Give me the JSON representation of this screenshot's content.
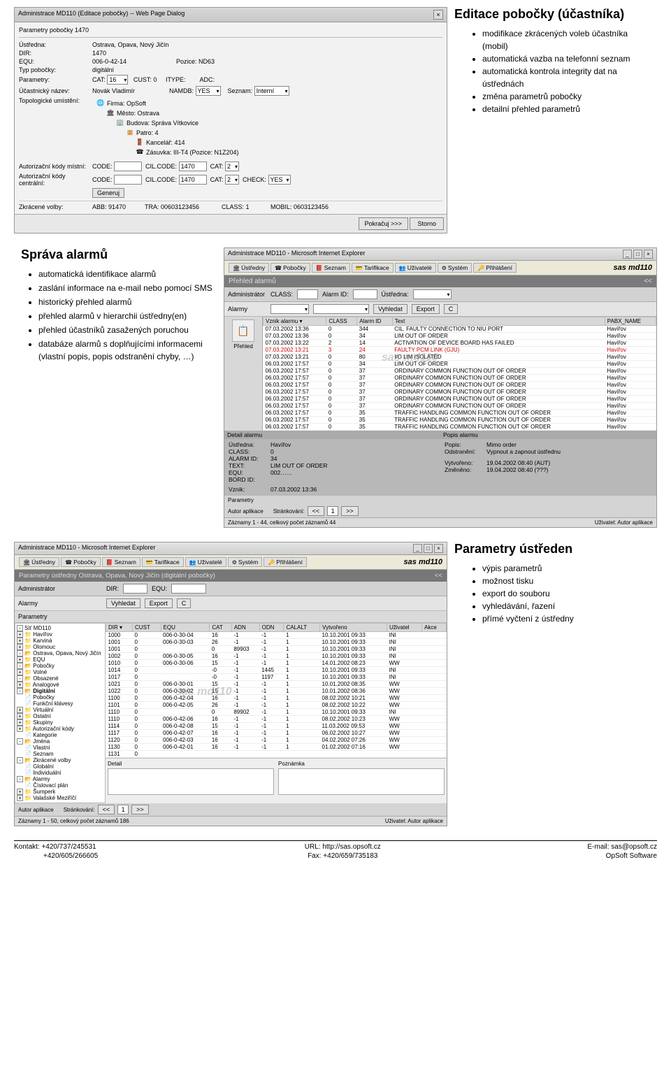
{
  "section1": {
    "heading": "Editace pobočky (účastníka)",
    "bullets": [
      "modifikace zkrácených voleb účastníka (mobil)",
      "automatická vazba na telefonní seznam",
      "automatická kontrola integrity dat na ústřednách",
      "změna parametrů pobočky",
      "detailní přehled parametrů"
    ]
  },
  "section2": {
    "heading": "Správa alarmů",
    "bullets": [
      "automatická identifikace alarmů",
      "zaslání informace na e-mail nebo pomocí SMS",
      "historický přehled alarmů",
      "přehled alarmů v hierarchii ústředny(en)",
      "přehled účastníků zasažených poruchou",
      "databáze alarmů s doplňujícími informacemi (vlastní popis, popis odstranění chyby, …)"
    ]
  },
  "section3": {
    "heading": "Parametry ústředen",
    "bullets": [
      "výpis parametrů",
      "možnost tisku",
      "export do souboru",
      "vyhledávání, řazení",
      "přímé vyčtení z ústředny"
    ]
  },
  "dialog1": {
    "title": "Administrace MD110 (Editace pobočky) -- Web Page Dialog",
    "subtitle": "Parametry pobočky 1470",
    "fields": {
      "ustredna_lbl": "Ústředna:",
      "ustredna_val": "Ostrava, Opava, Nový Jičín",
      "dir_lbl": "DIR:",
      "dir_val": "1470",
      "equ_lbl": "EQU:",
      "equ_val": "006-0-42-14",
      "pozice_lbl": "Pozice:",
      "pozice_val": "ND63",
      "typ_lbl": "Typ pobočky:",
      "typ_val": "digitální",
      "param_lbl": "Parametry:",
      "cat_lbl": "CAT:",
      "cat_val": "16",
      "cust_lbl": "CUST:",
      "cust_val": "0",
      "itype_lbl": "ITYPE:",
      "adc_lbl": "ADC:",
      "unazev_lbl": "Účastnický název:",
      "novak": "Novák Vladimír",
      "namdb_lbl": "NAMDB:",
      "namdb_val": "YES",
      "seznam_lbl": "Seznam:",
      "seznam_val": "Interní",
      "topo_lbl": "Topologické umístění:"
    },
    "tree": [
      {
        "icon": "🌐",
        "label": "Firma: OpSoft",
        "indent": 0,
        "color": "#2a6dd6"
      },
      {
        "icon": "🏛",
        "label": "Město: Ostrava",
        "indent": 1
      },
      {
        "icon": "🏢",
        "label": "Budova: Správa Vítkovice",
        "indent": 2
      },
      {
        "icon": "▦",
        "label": "Patro: 4",
        "indent": 3,
        "color": "#cc7700"
      },
      {
        "icon": "🚪",
        "label": "Kancelář: 414",
        "indent": 4
      },
      {
        "icon": "☎",
        "label": "Zásuvka: III-T4   (Pozice: N1Z204)",
        "indent": 4
      }
    ],
    "auth_mistni_lbl": "Autorizační kódy místní:",
    "auth_centr_lbl": "Autorizační kódy centrální:",
    "code_lbl": "CODE:",
    "cilcode_lbl": "CIL.CODE:",
    "cilcode_val": "1470",
    "kcat_lbl": "CAT:",
    "kcat_val": "2",
    "check_lbl": "CHECK:",
    "check_val": "YES",
    "generuj": "Generuj",
    "zkrac_lbl": "Zkrácené volby:",
    "abb": "ABB: 91470",
    "tra": "TRA: 00603123456",
    "class": "CLASS: 1",
    "mobil": "MOBIL: 0603123456",
    "pokracuj": "Pokračuj >>>",
    "storno": "Storno"
  },
  "browser_title": "Administrace MD110 - Microsoft Internet Explorer",
  "toolbar_tabs": [
    {
      "ico": "🏛",
      "label": "Ústředny"
    },
    {
      "ico": "☎",
      "label": "Pobočky"
    },
    {
      "ico": "📕",
      "label": "Seznam"
    },
    {
      "ico": "💳",
      "label": "Tarifikace"
    },
    {
      "ico": "👥",
      "label": "Uživatelé"
    },
    {
      "ico": "⚙",
      "label": "Systém"
    },
    {
      "ico": "🔑",
      "label": "Přihlášení"
    }
  ],
  "logo": "sas md110",
  "alarms": {
    "panel_title": "Přehled alarmů",
    "collapse": "<<",
    "admin_lbl": "Administrátor",
    "alarmy_lbl": "Alarmy",
    "class_lbl": "CLASS:",
    "alarmid_lbl": "Alarm ID:",
    "ustredna_lbl": "Ústředna:",
    "vyhledat": "Vyhledat",
    "export": "Export",
    "c_btn": "C",
    "side_label": "Přehled",
    "columns": [
      "Vznik alarmu ▾",
      "CLASS",
      "Alarm ID",
      "Text",
      "PABX_NAME"
    ],
    "rows": [
      [
        "07.03.2002 13:36",
        "0",
        "344",
        "CIL. FAULTY CONNECTION TO NIU PORT",
        "Havířov"
      ],
      [
        "07.03.2002 13:36",
        "0",
        "34",
        "LIM OUT OF ORDER",
        "Havířov"
      ],
      [
        "07.03.2002 13:22",
        "2",
        "14",
        "ACTIVATION OF DEVICE BOARD HAS FAILED",
        "Havířov"
      ],
      [
        "07.03.2002 13:21",
        "3",
        "24",
        "FAULTY PCM LINK (GJU)",
        "Havířov"
      ],
      [
        "07.03.2002 13:21",
        "0",
        "80",
        "I/O LIM ISOLATED",
        "Havířov"
      ],
      [
        "06.03.2002 17:57",
        "0",
        "34",
        "LIM OUT OF ORDER",
        "Havířov"
      ],
      [
        "06.03.2002 17:57",
        "0",
        "37",
        "ORDINARY COMMON FUNCTION OUT OF ORDER",
        "Havířov"
      ],
      [
        "06.03.2002 17:57",
        "0",
        "37",
        "ORDINARY COMMON FUNCTION OUT OF ORDER",
        "Havířov"
      ],
      [
        "06.03.2002 17:57",
        "0",
        "37",
        "ORDINARY COMMON FUNCTION OUT OF ORDER",
        "Havířov"
      ],
      [
        "06.03.2002 17:57",
        "0",
        "37",
        "ORDINARY COMMON FUNCTION OUT OF ORDER",
        "Havířov"
      ],
      [
        "06.03.2002 17:57",
        "0",
        "37",
        "ORDINARY COMMON FUNCTION OUT OF ORDER",
        "Havířov"
      ],
      [
        "06.03.2002 17:57",
        "0",
        "37",
        "ORDINARY COMMON FUNCTION OUT OF ORDER",
        "Havířov"
      ],
      [
        "06.03.2002 17:57",
        "0",
        "35",
        "TRAFFIC HANDLING COMMON FUNCTION OUT OF ORDER",
        "Havířov"
      ],
      [
        "06.03.2002 17:57",
        "0",
        "35",
        "TRAFFIC HANDLING COMMON FUNCTION OUT OF ORDER",
        "Havířov"
      ],
      [
        "06.03.2002 17:57",
        "0",
        "35",
        "TRAFFIC HANDLING COMMON FUNCTION OUT OF ORDER",
        "Havířov"
      ]
    ],
    "red_row": 3,
    "detail_title": "Detail alarmu",
    "popis_title": "Popis alarmu",
    "d_ustredna_lbl": "Ústředna:",
    "d_ustredna": "Havířov",
    "d_class_lbl": "CLASS:",
    "d_class": "0",
    "d_alarmid_lbl": "ALARM ID:",
    "d_alarmid": "34",
    "d_text_lbl": "TEXT:",
    "d_text": "LIM OUT OF ORDER",
    "d_equ_lbl": "EQU:",
    "d_equ": "002……",
    "d_bord_lbl": "BORD ID:",
    "d_vznik_lbl": "Vznik:",
    "d_vznik": "07.03.2002 13:36",
    "p_popis_lbl": "Popis:",
    "p_popis": "Mimo order",
    "p_odstr_lbl": "Odstranění:",
    "p_odstr": "Vypnout a zapnout ústřednu",
    "p_vytv_lbl": "Vytvořeno:",
    "p_vytv": "19.04.2002 08:40   (AUT)",
    "p_zmen_lbl": "Změněno:",
    "p_zmen": "19.04.2002 08:40   (???)",
    "parametry": "Parametry",
    "autor": "Autor aplikace",
    "strankov": "Stránkování:",
    "pg": "1",
    "prev": "<<",
    "next": ">>",
    "zaznamy": "Záznamy 1 - 44, celkový počet záznamů 44",
    "uzivatel": "Uživatel: Autor aplikace"
  },
  "params": {
    "title": "Parametry ústředny Ostrava, Opava, Nový Jičín (digitální pobočky)",
    "collapse": "<<",
    "admin_lbl": "Administrátor",
    "alarmy_lbl": "Alarmy",
    "parametry_lbl": "Parametry",
    "dir_lbl": "DIR:",
    "equ_lbl": "EQU:",
    "vyhledat": "Vyhledat",
    "export": "Export",
    "c_btn": "C",
    "tree": [
      {
        "exp": "-",
        "label": "Síť MD110",
        "cls": "pti0"
      },
      {
        "exp": "+",
        "label": "Havířov",
        "cls": "pti1",
        "ico": "📁"
      },
      {
        "exp": "+",
        "label": "Karviná",
        "cls": "pti1",
        "ico": "📁"
      },
      {
        "exp": "+",
        "label": "Olomouc",
        "cls": "pti1",
        "ico": "📁"
      },
      {
        "exp": "-",
        "label": "Ostrava, Opava, Nový Jičín",
        "cls": "pti1",
        "ico": "📂"
      },
      {
        "exp": "+",
        "label": "EQU",
        "cls": "pti2",
        "ico": "📁"
      },
      {
        "exp": "-",
        "label": "Pobočky",
        "cls": "pti2",
        "ico": "📂"
      },
      {
        "exp": "+",
        "label": "Volné",
        "cls": "pti3",
        "ico": "📁"
      },
      {
        "exp": "-",
        "label": "Obsazené",
        "cls": "pti3",
        "ico": "📂"
      },
      {
        "exp": "+",
        "label": "Analogové",
        "cls": "pti4",
        "ico": "📁"
      },
      {
        "exp": "-",
        "label": "Digitální",
        "cls": "pti4",
        "ico": "📂",
        "bold": true
      },
      {
        "exp": "",
        "label": "Pobočky",
        "cls": "pti4",
        "ico": "📄"
      },
      {
        "exp": "",
        "label": "Funkční klávesy",
        "cls": "pti4",
        "ico": "📄"
      },
      {
        "exp": "+",
        "label": "Virtuální",
        "cls": "pti4",
        "ico": "📁"
      },
      {
        "exp": "+",
        "label": "Ostatní",
        "cls": "pti3",
        "ico": "📁"
      },
      {
        "exp": "+",
        "label": "Skupiny",
        "cls": "pti3",
        "ico": "📁"
      },
      {
        "exp": "+",
        "label": "Autorizační kódy",
        "cls": "pti3",
        "ico": "📁"
      },
      {
        "exp": "",
        "label": "Kategorie",
        "cls": "pti3",
        "ico": "📄"
      },
      {
        "exp": "-",
        "label": "Jména",
        "cls": "pti2",
        "ico": "📂"
      },
      {
        "exp": "",
        "label": "Vlastní",
        "cls": "pti3",
        "ico": "📄"
      },
      {
        "exp": "",
        "label": "Seznam",
        "cls": "pti3",
        "ico": "📄"
      },
      {
        "exp": "-",
        "label": "Zkrácené volby",
        "cls": "pti2",
        "ico": "📂"
      },
      {
        "exp": "",
        "label": "Globální",
        "cls": "pti3",
        "ico": "📄"
      },
      {
        "exp": "",
        "label": "Individuální",
        "cls": "pti3",
        "ico": "📄"
      },
      {
        "exp": "-",
        "label": "Alarmy",
        "cls": "pti2",
        "ico": "📂"
      },
      {
        "exp": "",
        "label": "Číslovací plán",
        "cls": "pti3",
        "ico": "📄"
      },
      {
        "exp": "+",
        "label": "Šumperk",
        "cls": "pti1",
        "ico": "📁"
      },
      {
        "exp": "+",
        "label": "Valašské Meziříčí",
        "cls": "pti1",
        "ico": "📁"
      }
    ],
    "columns": [
      "DIR ▾",
      "CUST",
      "EQU",
      "CAT",
      "ADN",
      "ODN",
      "CALALT",
      "Vytvořeno",
      "Uživatel",
      "Akce"
    ],
    "rows": [
      [
        "1000",
        "0",
        "006-0-30-04",
        "16",
        "-1",
        "-1",
        "1",
        "10.10.2001 09:33",
        "INI",
        ""
      ],
      [
        "1001",
        "0",
        "006-0-30-03",
        "26",
        "-1",
        "-1",
        "1",
        "10.10.2001 09:33",
        "INI",
        ""
      ],
      [
        "1001",
        "0",
        "",
        "0",
        "89903",
        "-1",
        "1",
        "10.10.2001 09:33",
        "INI",
        ""
      ],
      [
        "1002",
        "0",
        "006-0-30-05",
        "16",
        "-1",
        "-1",
        "1",
        "10.10.2001 09:33",
        "INI",
        ""
      ],
      [
        "1010",
        "0",
        "006-0-30-06",
        "15",
        "-1",
        "-1",
        "1",
        "14.01.2002 08:23",
        "WW",
        ""
      ],
      [
        "1014",
        "0",
        "",
        "-0",
        "-1",
        "1445",
        "1",
        "10.10.2001 09:33",
        "INI",
        ""
      ],
      [
        "1017",
        "0",
        "",
        "-0",
        "-1",
        "1197",
        "1",
        "10.10.2001 09:33",
        "INI",
        ""
      ],
      [
        "1021",
        "0",
        "006-0-30-01",
        "15",
        "-1",
        "-1",
        "1",
        "10.01.2002 08:35",
        "WW",
        ""
      ],
      [
        "1022",
        "0",
        "006-0-30-02",
        "15",
        "-1",
        "-1",
        "1",
        "10.01.2002 08:36",
        "WW",
        ""
      ],
      [
        "1100",
        "0",
        "006-0-42-04",
        "16",
        "-1",
        "-1",
        "1",
        "08.02.2002 10:21",
        "WW",
        ""
      ],
      [
        "1101",
        "0",
        "006-0-42-05",
        "26",
        "-1",
        "-1",
        "1",
        "08.02.2002 10:22",
        "WW",
        ""
      ],
      [
        "1110",
        "0",
        "",
        "0",
        "89902",
        "-1",
        "1",
        "10.10.2001 09:33",
        "INI",
        ""
      ],
      [
        "1110",
        "0",
        "006-0-42-06",
        "16",
        "-1",
        "-1",
        "1",
        "08.02.2002 10:23",
        "WW",
        ""
      ],
      [
        "1114",
        "0",
        "006-0-42-08",
        "15",
        "-1",
        "-1",
        "1",
        "11.03.2002 09:53",
        "WW",
        ""
      ],
      [
        "1117",
        "0",
        "006-0-42-07",
        "16",
        "-1",
        "-1",
        "1",
        "06.02.2002 10:27",
        "WW",
        ""
      ],
      [
        "1120",
        "0",
        "006-0-42-03",
        "16",
        "-1",
        "-1",
        "1",
        "04.02.2002 07:26",
        "WW",
        ""
      ],
      [
        "1130",
        "0",
        "006-0-42-01",
        "16",
        "-1",
        "-1",
        "1",
        "01.02.2002 07:16",
        "WW",
        ""
      ],
      [
        "1131",
        "0",
        "",
        "",
        "",
        "",
        "",
        "",
        "",
        ""
      ]
    ],
    "detail_lbl": "Detail",
    "poznamka_lbl": "Poznámka",
    "autor": "Autor aplikace",
    "strankov": "Stránkování:",
    "pg": "1",
    "prev": "<<",
    "next": ">>",
    "zaznamy": "Záznamy 1 - 50, celkový počet záznamů 186",
    "uzivatel": "Uživatel: Autor aplikace"
  },
  "footer": {
    "left1": "Kontakt: +420/737/245531",
    "left2": "+420/605/266605",
    "mid1": "URL: http://sas.opsoft.cz",
    "mid2": "Fax: +420/659/735183",
    "right1": "E-mail: sas@opsoft.cz",
    "right2": "OpSoft Software"
  }
}
